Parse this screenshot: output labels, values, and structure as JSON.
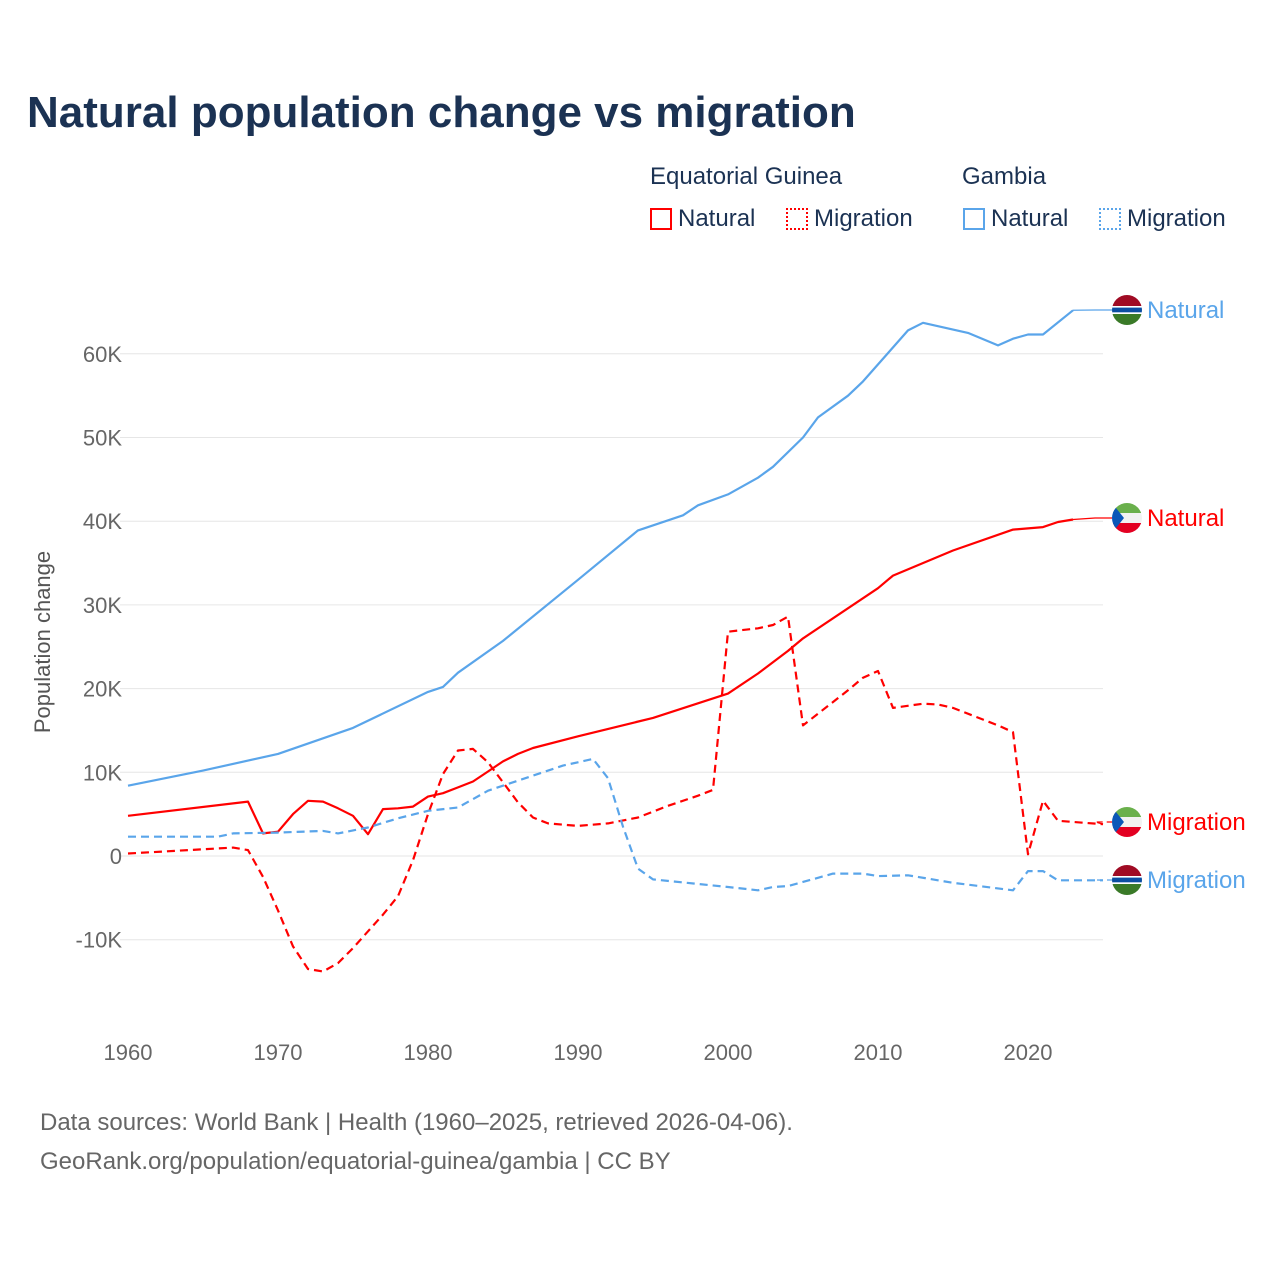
{
  "title": "Natural population change vs migration",
  "legend": {
    "groups": [
      {
        "country": "Equatorial Guinea",
        "color": "#ff0000",
        "items": [
          "Natural",
          "Migration"
        ]
      },
      {
        "country": "Gambia",
        "color": "#5aa5ea",
        "items": [
          "Natural",
          "Migration"
        ]
      }
    ]
  },
  "footer": {
    "line1": "Data sources: World Bank | Health (1960–2025, retrieved 2026-04-06).",
    "line2": "GeoRank.org/population/equatorial-guinea/gambia | CC BY"
  },
  "chart_data": {
    "type": "line",
    "title": "Natural population change vs migration",
    "xlabel": "",
    "ylabel": "Population change",
    "xlim": [
      1960,
      2025
    ],
    "ylim": [
      -18000,
      72000
    ],
    "x_ticks": [
      1960,
      1970,
      1980,
      1990,
      2000,
      2010,
      2020
    ],
    "y_ticks": [
      -10000,
      0,
      10000,
      20000,
      30000,
      40000,
      50000,
      60000
    ],
    "y_tick_labels": [
      "-10K",
      "0",
      "10K",
      "20K",
      "30K",
      "40K",
      "50K",
      "60K"
    ],
    "grid": true,
    "series": [
      {
        "name": "Gambia Natural",
        "label": "Natural",
        "country": "Gambia",
        "color": "#5aa5ea",
        "dash": false,
        "points": [
          [
            1960,
            8400
          ],
          [
            1965,
            10200
          ],
          [
            1970,
            12200
          ],
          [
            1975,
            15300
          ],
          [
            1980,
            19600
          ],
          [
            1981,
            20200
          ],
          [
            1982,
            21900
          ],
          [
            1985,
            25700
          ],
          [
            1990,
            33000
          ],
          [
            1994,
            38900
          ],
          [
            1997,
            40700
          ],
          [
            1998,
            41900
          ],
          [
            2000,
            43200
          ],
          [
            2002,
            45200
          ],
          [
            2003,
            46500
          ],
          [
            2005,
            50000
          ],
          [
            2006,
            52400
          ],
          [
            2008,
            55000
          ],
          [
            2009,
            56700
          ],
          [
            2012,
            62800
          ],
          [
            2013,
            63700
          ],
          [
            2016,
            62500
          ],
          [
            2018,
            61000
          ],
          [
            2019,
            61800
          ],
          [
            2020,
            62300
          ],
          [
            2021,
            62300
          ],
          [
            2023,
            65200
          ]
        ]
      },
      {
        "name": "Equatorial Guinea Natural",
        "label": "Natural",
        "country": "Equatorial Guinea",
        "color": "#ff0000",
        "dash": false,
        "points": [
          [
            1960,
            4800
          ],
          [
            1968,
            6500
          ],
          [
            1969,
            2700
          ],
          [
            1970,
            2900
          ],
          [
            1971,
            5000
          ],
          [
            1972,
            6600
          ],
          [
            1973,
            6500
          ],
          [
            1974,
            5700
          ],
          [
            1975,
            4800
          ],
          [
            1976,
            2600
          ],
          [
            1977,
            5600
          ],
          [
            1978,
            5700
          ],
          [
            1979,
            5900
          ],
          [
            1980,
            7100
          ],
          [
            1981,
            7500
          ],
          [
            1982,
            8200
          ],
          [
            1983,
            8900
          ],
          [
            1984,
            10100
          ],
          [
            1985,
            11300
          ],
          [
            1986,
            12200
          ],
          [
            1987,
            12900
          ],
          [
            1990,
            14300
          ],
          [
            1995,
            16500
          ],
          [
            2000,
            19400
          ],
          [
            2002,
            21800
          ],
          [
            2004,
            24500
          ],
          [
            2005,
            26000
          ],
          [
            2010,
            32000
          ],
          [
            2011,
            33500
          ],
          [
            2015,
            36500
          ],
          [
            2019,
            39000
          ],
          [
            2021,
            39300
          ],
          [
            2022,
            39900
          ],
          [
            2023,
            40200
          ]
        ]
      },
      {
        "name": "Equatorial Guinea Migration",
        "label": "Migration",
        "country": "Equatorial Guinea",
        "color": "#ff0000",
        "dash": true,
        "points": [
          [
            1960,
            300
          ],
          [
            1967,
            1000
          ],
          [
            1968,
            700
          ],
          [
            1969,
            -2500
          ],
          [
            1970,
            -6500
          ],
          [
            1971,
            -10800
          ],
          [
            1972,
            -13500
          ],
          [
            1973,
            -13800
          ],
          [
            1974,
            -12800
          ],
          [
            1975,
            -11000
          ],
          [
            1976,
            -9000
          ],
          [
            1977,
            -7000
          ],
          [
            1978,
            -4800
          ],
          [
            1979,
            -500
          ],
          [
            1980,
            5000
          ],
          [
            1981,
            9800
          ],
          [
            1982,
            12600
          ],
          [
            1983,
            12800
          ],
          [
            1984,
            11200
          ],
          [
            1985,
            8800
          ],
          [
            1986,
            6400
          ],
          [
            1987,
            4600
          ],
          [
            1988,
            3900
          ],
          [
            1990,
            3600
          ],
          [
            1992,
            3900
          ],
          [
            1994,
            4600
          ],
          [
            1996,
            6000
          ],
          [
            1998,
            7200
          ],
          [
            1999,
            7900
          ],
          [
            2000,
            26800
          ],
          [
            2002,
            27200
          ],
          [
            2003,
            27600
          ],
          [
            2004,
            28600
          ],
          [
            2005,
            15600
          ],
          [
            2008,
            19800
          ],
          [
            2009,
            21300
          ],
          [
            2010,
            22100
          ],
          [
            2011,
            17700
          ],
          [
            2013,
            18200
          ],
          [
            2014,
            18100
          ],
          [
            2015,
            17700
          ],
          [
            2018,
            15600
          ],
          [
            2019,
            14800
          ],
          [
            2020,
            200
          ],
          [
            2021,
            6600
          ],
          [
            2022,
            4200
          ],
          [
            2025,
            3800
          ]
        ]
      },
      {
        "name": "Gambia Migration",
        "label": "Migration",
        "country": "Gambia",
        "color": "#5aa5ea",
        "dash": true,
        "points": [
          [
            1960,
            2300
          ],
          [
            1966,
            2300
          ],
          [
            1967,
            2700
          ],
          [
            1970,
            2800
          ],
          [
            1973,
            3000
          ],
          [
            1974,
            2700
          ],
          [
            1976,
            3400
          ],
          [
            1978,
            4500
          ],
          [
            1980,
            5400
          ],
          [
            1982,
            5800
          ],
          [
            1984,
            7800
          ],
          [
            1987,
            9600
          ],
          [
            1989,
            10800
          ],
          [
            1991,
            11600
          ],
          [
            1992,
            9300
          ],
          [
            1993,
            3500
          ],
          [
            1994,
            -1500
          ],
          [
            1995,
            -2800
          ],
          [
            2000,
            -3700
          ],
          [
            2002,
            -4100
          ],
          [
            2003,
            -3700
          ],
          [
            2004,
            -3600
          ],
          [
            2006,
            -2600
          ],
          [
            2007,
            -2100
          ],
          [
            2009,
            -2100
          ],
          [
            2010,
            -2400
          ],
          [
            2012,
            -2300
          ],
          [
            2015,
            -3200
          ],
          [
            2019,
            -4100
          ],
          [
            2020,
            -1800
          ],
          [
            2021,
            -1800
          ],
          [
            2022,
            -2900
          ],
          [
            2025,
            -2900
          ]
        ]
      }
    ]
  }
}
